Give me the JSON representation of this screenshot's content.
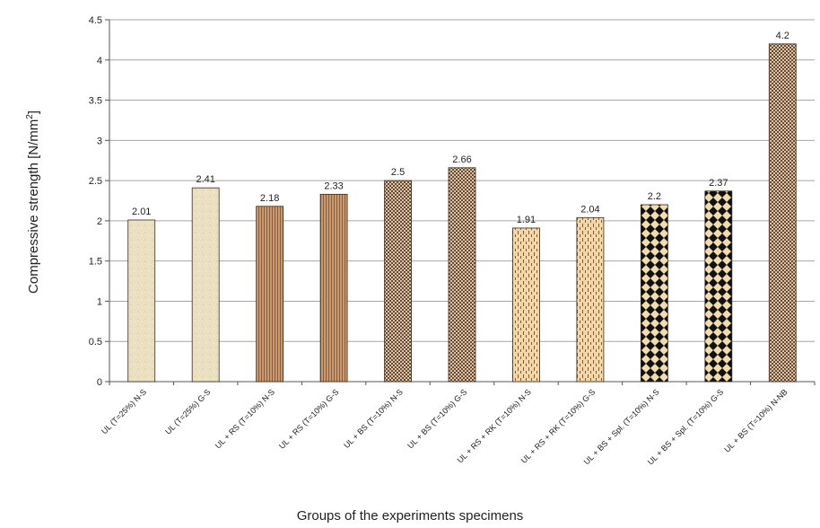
{
  "chart_data": {
    "type": "bar",
    "title": "",
    "xlabel": "Groups of the experiments specimens",
    "ylabel_main": "Compressive strength [N/mm",
    "ylabel_sup": "2",
    "ylabel_end": "]",
    "ylim": [
      0,
      4.5
    ],
    "yticks": [
      "0",
      "0.5",
      "1",
      "1.5",
      "2",
      "2.5",
      "3",
      "3.5",
      "4",
      "4.5"
    ],
    "grid": true,
    "categories": [
      "UL (T=25%) N-S",
      "UL (T=25%) G-S",
      "UL + RS (T=10%) N-S",
      "UL + RS (T=10%) G-S",
      "UL + BS (T=10%) N-S",
      "UL + BS (T=10%) G-S",
      "UL + RS + RK (T=10%) N-S",
      "UL + RS + RK (T=10%) G-S",
      "UL + BS + Spl. (T=10%) N-S",
      "UL + BS + Spl. (T=10%) G-S",
      "UL + BS (T=10%) N-NB"
    ],
    "values": [
      2.01,
      2.41,
      2.18,
      2.33,
      2.5,
      2.66,
      1.91,
      2.04,
      2.2,
      2.37,
      4.2
    ],
    "value_labels": [
      "2.01",
      "2.41",
      "2.18",
      "2.33",
      "2.5",
      "2.66",
      "1.91",
      "2.04",
      "2.2",
      "2.37",
      "4.2"
    ],
    "patterns": [
      "beige",
      "beige",
      "stripes",
      "stripes",
      "checker",
      "checker",
      "dashes",
      "dashes",
      "diamond",
      "diamond",
      "checker"
    ],
    "colors": {
      "beige": "#ece0c2",
      "stripes_bg": "#c79a72",
      "stripes_line": "#8a5e3c",
      "checker_a": "#6b4a35",
      "checker_b": "#d9c4a8",
      "dashes_bg": "#f3d7a8",
      "dashes_mark": "#7a5a3a",
      "diamond_bg": "#f1dcb0",
      "diamond_mark": "#111111",
      "grid": "#a6a6a6",
      "axis": "#555555"
    }
  }
}
